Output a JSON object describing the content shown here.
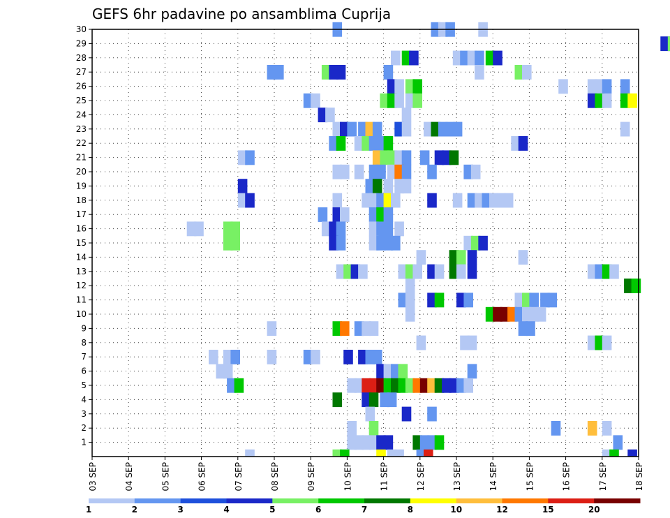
{
  "chart_data": {
    "type": "heatmap",
    "title": "GEFS 6hr padavine po ansamblima Cuprija",
    "xlabel": "",
    "ylabel": "",
    "x_ticks": [
      "03 SEP",
      "04 SEP",
      "05 SEP",
      "06 SEP",
      "07 SEP",
      "08 SEP",
      "09 SEP",
      "10 SEP",
      "11 SEP",
      "12 SEP",
      "13 SEP",
      "14 SEP",
      "15 SEP",
      "16 SEP",
      "17 SEP",
      "18 SEP"
    ],
    "y_ticks": [
      "1",
      "2",
      "3",
      "4",
      "5",
      "6",
      "7",
      "8",
      "9",
      "10",
      "11",
      "12",
      "13",
      "14",
      "15",
      "16",
      "17",
      "18",
      "19",
      "20",
      "21",
      "22",
      "23",
      "24",
      "25",
      "26",
      "27",
      "28",
      "29",
      "30"
    ],
    "x_range": [
      "03 SEP",
      "18 SEP"
    ],
    "y_range": [
      0,
      30
    ],
    "grid": true,
    "colorbar": {
      "labels": [
        "1",
        "2",
        "3",
        "4",
        "5",
        "6",
        "7",
        "8",
        "10",
        "12",
        "15",
        "20"
      ],
      "colors": [
        "#b4c8f4",
        "#6496f0",
        "#1e50dc",
        "#1a28c8",
        "#78f064",
        "#00c800",
        "#007800",
        "#ffff00",
        "#ffbe3c",
        "#ff7800",
        "#dc1e14",
        "#780000"
      ]
    },
    "cells": [
      {
        "m": 30,
        "d": 6.6,
        "c": 2
      },
      {
        "m": 30,
        "d": 9.3,
        "c": 2
      },
      {
        "m": 30,
        "d": 9.5,
        "c": 1
      },
      {
        "m": 30,
        "d": 9.7,
        "c": 2
      },
      {
        "m": 30,
        "d": 10.6,
        "c": 1
      },
      {
        "m": 29,
        "d": 15.6,
        "c": 4
      },
      {
        "m": 29,
        "d": 15.8,
        "c": 5
      },
      {
        "m": 28,
        "d": 8.2,
        "c": 1
      },
      {
        "m": 28,
        "d": 8.5,
        "c": 6
      },
      {
        "m": 28,
        "d": 8.7,
        "c": 4
      },
      {
        "m": 28,
        "d": 9.9,
        "c": 1
      },
      {
        "m": 28,
        "d": 10.1,
        "c": 2
      },
      {
        "m": 28,
        "d": 10.3,
        "c": 1
      },
      {
        "m": 28,
        "d": 10.5,
        "c": 2
      },
      {
        "m": 28,
        "d": 10.8,
        "c": 6
      },
      {
        "m": 28,
        "d": 11,
        "c": 4
      },
      {
        "m": 27,
        "d": 4.8,
        "c": 2
      },
      {
        "m": 27,
        "d": 5,
        "c": 2
      },
      {
        "m": 27,
        "d": 6.3,
        "c": 5
      },
      {
        "m": 27,
        "d": 6.5,
        "c": 4
      },
      {
        "m": 27,
        "d": 6.7,
        "c": 4
      },
      {
        "m": 27,
        "d": 8,
        "c": 2
      },
      {
        "m": 27,
        "d": 10.5,
        "c": 1
      },
      {
        "m": 27,
        "d": 11.6,
        "c": 5
      },
      {
        "m": 27,
        "d": 11.8,
        "c": 1
      },
      {
        "m": 26,
        "d": 8.1,
        "c": 4
      },
      {
        "m": 26,
        "d": 8.3,
        "c": 1
      },
      {
        "m": 26,
        "d": 8.6,
        "c": 5
      },
      {
        "m": 26,
        "d": 8.8,
        "c": 6
      },
      {
        "m": 26,
        "d": 12.8,
        "c": 1
      },
      {
        "m": 26,
        "d": 13.6,
        "c": 1
      },
      {
        "m": 26,
        "d": 13.8,
        "c": 1
      },
      {
        "m": 26,
        "d": 14,
        "c": 2
      },
      {
        "m": 26,
        "d": 14.5,
        "c": 2
      },
      {
        "m": 25,
        "d": 5.8,
        "c": 2
      },
      {
        "m": 25,
        "d": 6,
        "c": 1
      },
      {
        "m": 25,
        "d": 7.9,
        "c": 5
      },
      {
        "m": 25,
        "d": 8.1,
        "c": 6
      },
      {
        "m": 25,
        "d": 8.3,
        "c": 1
      },
      {
        "m": 25,
        "d": 8.6,
        "c": 1
      },
      {
        "m": 25,
        "d": 8.8,
        "c": 5
      },
      {
        "m": 25,
        "d": 13.6,
        "c": 4
      },
      {
        "m": 25,
        "d": 13.8,
        "c": 6
      },
      {
        "m": 25,
        "d": 14,
        "c": 1
      },
      {
        "m": 25,
        "d": 14.5,
        "c": 6
      },
      {
        "m": 25,
        "d": 14.7,
        "c": 8
      },
      {
        "m": 24,
        "d": 6.2,
        "c": 4
      },
      {
        "m": 24,
        "d": 6.4,
        "c": 1
      },
      {
        "m": 24,
        "d": 8.5,
        "c": 1
      },
      {
        "m": 23,
        "d": 6.6,
        "c": 1
      },
      {
        "m": 23,
        "d": 6.8,
        "c": 4
      },
      {
        "m": 23,
        "d": 7,
        "c": 2
      },
      {
        "m": 23,
        "d": 7.3,
        "c": 2
      },
      {
        "m": 23,
        "d": 7.5,
        "c": 9
      },
      {
        "m": 23,
        "d": 7.7,
        "c": 2
      },
      {
        "m": 23,
        "d": 8.3,
        "c": 3
      },
      {
        "m": 23,
        "d": 8.5,
        "c": 1
      },
      {
        "m": 23,
        "d": 9.1,
        "c": 1
      },
      {
        "m": 23,
        "d": 9.3,
        "c": 7
      },
      {
        "m": 23,
        "d": 9.5,
        "c": 2
      },
      {
        "m": 23,
        "d": 9.7,
        "c": 2
      },
      {
        "m": 23,
        "d": 9.9,
        "c": 2
      },
      {
        "m": 23,
        "d": 14.5,
        "c": 1
      },
      {
        "m": 22,
        "d": 6.5,
        "c": 2
      },
      {
        "m": 22,
        "d": 6.7,
        "c": 6
      },
      {
        "m": 22,
        "d": 7.2,
        "c": 1
      },
      {
        "m": 22,
        "d": 7.4,
        "c": 5
      },
      {
        "m": 22,
        "d": 7.6,
        "c": 2
      },
      {
        "m": 22,
        "d": 7.8,
        "c": 2
      },
      {
        "m": 22,
        "d": 8,
        "c": 6
      },
      {
        "m": 22,
        "d": 11.5,
        "c": 1
      },
      {
        "m": 22,
        "d": 11.7,
        "c": 4
      },
      {
        "m": 21,
        "d": 4,
        "c": 1
      },
      {
        "m": 21,
        "d": 4.2,
        "c": 2
      },
      {
        "m": 21,
        "d": 7.7,
        "c": 9
      },
      {
        "m": 21,
        "d": 7.9,
        "c": 5
      },
      {
        "m": 21,
        "d": 8.1,
        "c": 5
      },
      {
        "m": 21,
        "d": 8.3,
        "c": 1
      },
      {
        "m": 21,
        "d": 8.5,
        "c": 2
      },
      {
        "m": 21,
        "d": 9,
        "c": 2
      },
      {
        "m": 21,
        "d": 9.4,
        "c": 4
      },
      {
        "m": 21,
        "d": 9.6,
        "c": 4
      },
      {
        "m": 21,
        "d": 9.8,
        "c": 7
      },
      {
        "m": 20,
        "d": 6.6,
        "c": 1
      },
      {
        "m": 20,
        "d": 6.8,
        "c": 1
      },
      {
        "m": 20,
        "d": 7.2,
        "c": 1
      },
      {
        "m": 20,
        "d": 7.6,
        "c": 2
      },
      {
        "m": 20,
        "d": 7.8,
        "c": 2
      },
      {
        "m": 20,
        "d": 8.1,
        "c": 1
      },
      {
        "m": 20,
        "d": 8.3,
        "c": 10
      },
      {
        "m": 20,
        "d": 8.5,
        "c": 2
      },
      {
        "m": 20,
        "d": 9.2,
        "c": 2
      },
      {
        "m": 20,
        "d": 10.2,
        "c": 2
      },
      {
        "m": 20,
        "d": 10.4,
        "c": 1
      },
      {
        "m": 19,
        "d": 4,
        "c": 4
      },
      {
        "m": 19,
        "d": 7.5,
        "c": 2
      },
      {
        "m": 19,
        "d": 7.7,
        "c": 7
      },
      {
        "m": 19,
        "d": 8,
        "c": 1
      },
      {
        "m": 19,
        "d": 8.3,
        "c": 1
      },
      {
        "m": 19,
        "d": 8.5,
        "c": 1
      },
      {
        "m": 18,
        "d": 4,
        "c": 1
      },
      {
        "m": 18,
        "d": 4.2,
        "c": 4
      },
      {
        "m": 18,
        "d": 6.6,
        "c": 1
      },
      {
        "m": 18,
        "d": 7.4,
        "c": 1
      },
      {
        "m": 18,
        "d": 7.6,
        "c": 1
      },
      {
        "m": 18,
        "d": 7.8,
        "c": 2
      },
      {
        "m": 18,
        "d": 8,
        "c": 8
      },
      {
        "m": 18,
        "d": 8.2,
        "c": 1
      },
      {
        "m": 18,
        "d": 9.2,
        "c": 4
      },
      {
        "m": 18,
        "d": 9.9,
        "c": 1
      },
      {
        "m": 18,
        "d": 10.3,
        "c": 2
      },
      {
        "m": 18,
        "d": 10.5,
        "c": 1
      },
      {
        "m": 18,
        "d": 10.7,
        "c": 2
      },
      {
        "m": 18,
        "d": 10.9,
        "c": 1
      },
      {
        "m": 18,
        "d": 11.1,
        "c": 1
      },
      {
        "m": 18,
        "d": 11.3,
        "c": 1
      },
      {
        "m": 17,
        "d": 6.2,
        "c": 2
      },
      {
        "m": 17,
        "d": 6.6,
        "c": 4
      },
      {
        "m": 17,
        "d": 6.8,
        "c": 1
      },
      {
        "m": 17,
        "d": 7.6,
        "c": 2
      },
      {
        "m": 17,
        "d": 7.8,
        "c": 6
      },
      {
        "m": 17,
        "d": 8,
        "c": 2
      },
      {
        "m": 16,
        "d": 2.6,
        "c": 1
      },
      {
        "m": 16,
        "d": 2.8,
        "c": 1
      },
      {
        "m": 16,
        "d": 3.6,
        "c": 5
      },
      {
        "m": 16,
        "d": 3.8,
        "c": 5
      },
      {
        "m": 16,
        "d": 6.3,
        "c": 1
      },
      {
        "m": 16,
        "d": 6.5,
        "c": 4
      },
      {
        "m": 16,
        "d": 6.7,
        "c": 2
      },
      {
        "m": 16,
        "d": 7.6,
        "c": 1
      },
      {
        "m": 16,
        "d": 7.8,
        "c": 2
      },
      {
        "m": 16,
        "d": 8,
        "c": 2
      },
      {
        "m": 16,
        "d": 8.3,
        "c": 1
      },
      {
        "m": 15,
        "d": 3.6,
        "c": 5
      },
      {
        "m": 15,
        "d": 3.8,
        "c": 5
      },
      {
        "m": 15,
        "d": 6.5,
        "c": 4
      },
      {
        "m": 15,
        "d": 6.7,
        "c": 2
      },
      {
        "m": 15,
        "d": 7.6,
        "c": 1
      },
      {
        "m": 15,
        "d": 7.8,
        "c": 2
      },
      {
        "m": 15,
        "d": 8,
        "c": 2
      },
      {
        "m": 15,
        "d": 8.2,
        "c": 2
      },
      {
        "m": 15,
        "d": 10.2,
        "c": 1
      },
      {
        "m": 15,
        "d": 10.4,
        "c": 5
      },
      {
        "m": 15,
        "d": 10.6,
        "c": 4
      },
      {
        "m": 14,
        "d": 8.9,
        "c": 1
      },
      {
        "m": 14,
        "d": 9.8,
        "c": 7
      },
      {
        "m": 14,
        "d": 10,
        "c": 5
      },
      {
        "m": 14,
        "d": 10.3,
        "c": 4
      },
      {
        "m": 14,
        "d": 11.7,
        "c": 1
      },
      {
        "m": 13,
        "d": 6.7,
        "c": 1
      },
      {
        "m": 13,
        "d": 6.9,
        "c": 5
      },
      {
        "m": 13,
        "d": 7.1,
        "c": 4
      },
      {
        "m": 13,
        "d": 7.3,
        "c": 1
      },
      {
        "m": 13,
        "d": 8.4,
        "c": 1
      },
      {
        "m": 13,
        "d": 8.6,
        "c": 5
      },
      {
        "m": 13,
        "d": 8.8,
        "c": 1
      },
      {
        "m": 13,
        "d": 9.2,
        "c": 4
      },
      {
        "m": 13,
        "d": 9.4,
        "c": 1
      },
      {
        "m": 13,
        "d": 9.8,
        "c": 7
      },
      {
        "m": 13,
        "d": 10,
        "c": 1
      },
      {
        "m": 13,
        "d": 10.3,
        "c": 4
      },
      {
        "m": 13,
        "d": 13.6,
        "c": 1
      },
      {
        "m": 13,
        "d": 13.8,
        "c": 2
      },
      {
        "m": 13,
        "d": 14,
        "c": 6
      },
      {
        "m": 13,
        "d": 14.2,
        "c": 1
      },
      {
        "m": 12,
        "d": 8.6,
        "c": 1
      },
      {
        "m": 12,
        "d": 14.6,
        "c": 7
      },
      {
        "m": 12,
        "d": 14.8,
        "c": 6
      },
      {
        "m": 11,
        "d": 8.4,
        "c": 2
      },
      {
        "m": 11,
        "d": 8.6,
        "c": 1
      },
      {
        "m": 11,
        "d": 9.2,
        "c": 4
      },
      {
        "m": 11,
        "d": 9.4,
        "c": 6
      },
      {
        "m": 11,
        "d": 10,
        "c": 4
      },
      {
        "m": 11,
        "d": 10.2,
        "c": 2
      },
      {
        "m": 11,
        "d": 11.6,
        "c": 1
      },
      {
        "m": 11,
        "d": 11.8,
        "c": 5
      },
      {
        "m": 11,
        "d": 12,
        "c": 2
      },
      {
        "m": 11,
        "d": 12.3,
        "c": 2
      },
      {
        "m": 11,
        "d": 12.5,
        "c": 2
      },
      {
        "m": 10,
        "d": 8.6,
        "c": 1
      },
      {
        "m": 10,
        "d": 10.8,
        "c": 6
      },
      {
        "m": 10,
        "d": 11,
        "c": 12
      },
      {
        "m": 10,
        "d": 11.2,
        "c": 12
      },
      {
        "m": 10,
        "d": 11.4,
        "c": 10
      },
      {
        "m": 10,
        "d": 11.6,
        "c": 2
      },
      {
        "m": 10,
        "d": 11.8,
        "c": 1
      },
      {
        "m": 10,
        "d": 12,
        "c": 1
      },
      {
        "m": 10,
        "d": 12.2,
        "c": 1
      },
      {
        "m": 9,
        "d": 4.8,
        "c": 1
      },
      {
        "m": 9,
        "d": 6.6,
        "c": 6
      },
      {
        "m": 9,
        "d": 6.8,
        "c": 10
      },
      {
        "m": 9,
        "d": 7.2,
        "c": 2
      },
      {
        "m": 9,
        "d": 7.4,
        "c": 1
      },
      {
        "m": 9,
        "d": 7.6,
        "c": 1
      },
      {
        "m": 9,
        "d": 11.7,
        "c": 2
      },
      {
        "m": 9,
        "d": 11.9,
        "c": 2
      },
      {
        "m": 8,
        "d": 8.9,
        "c": 1
      },
      {
        "m": 8,
        "d": 10.1,
        "c": 1
      },
      {
        "m": 8,
        "d": 10.3,
        "c": 1
      },
      {
        "m": 8,
        "d": 13.6,
        "c": 1
      },
      {
        "m": 8,
        "d": 13.8,
        "c": 6
      },
      {
        "m": 8,
        "d": 14,
        "c": 1
      },
      {
        "m": 7,
        "d": 3.2,
        "c": 1
      },
      {
        "m": 7,
        "d": 3.6,
        "c": 1
      },
      {
        "m": 7,
        "d": 3.8,
        "c": 2
      },
      {
        "m": 7,
        "d": 4.8,
        "c": 1
      },
      {
        "m": 7,
        "d": 5.8,
        "c": 2
      },
      {
        "m": 7,
        "d": 6,
        "c": 1
      },
      {
        "m": 7,
        "d": 6.9,
        "c": 4
      },
      {
        "m": 7,
        "d": 7.3,
        "c": 4
      },
      {
        "m": 7,
        "d": 7.5,
        "c": 2
      },
      {
        "m": 7,
        "d": 7.7,
        "c": 2
      },
      {
        "m": 6,
        "d": 3.4,
        "c": 1
      },
      {
        "m": 6,
        "d": 3.6,
        "c": 1
      },
      {
        "m": 6,
        "d": 7.8,
        "c": 4
      },
      {
        "m": 6,
        "d": 8,
        "c": 1
      },
      {
        "m": 6,
        "d": 8.2,
        "c": 2
      },
      {
        "m": 6,
        "d": 8.4,
        "c": 5
      },
      {
        "m": 6,
        "d": 10.3,
        "c": 2
      },
      {
        "m": 5,
        "d": 3.7,
        "c": 2
      },
      {
        "m": 5,
        "d": 3.9,
        "c": 6
      },
      {
        "m": 5,
        "d": 7,
        "c": 1
      },
      {
        "m": 5,
        "d": 7.2,
        "c": 1
      },
      {
        "m": 5,
        "d": 7.4,
        "c": 11
      },
      {
        "m": 5,
        "d": 7.6,
        "c": 11
      },
      {
        "m": 5,
        "d": 7.8,
        "c": 12
      },
      {
        "m": 5,
        "d": 8,
        "c": 6
      },
      {
        "m": 5,
        "d": 8.2,
        "c": 7
      },
      {
        "m": 5,
        "d": 8.4,
        "c": 6
      },
      {
        "m": 5,
        "d": 8.6,
        "c": 5
      },
      {
        "m": 5,
        "d": 8.8,
        "c": 10
      },
      {
        "m": 5,
        "d": 9,
        "c": 12
      },
      {
        "m": 5,
        "d": 9.2,
        "c": 9
      },
      {
        "m": 5,
        "d": 9.4,
        "c": 7
      },
      {
        "m": 5,
        "d": 9.6,
        "c": 4
      },
      {
        "m": 5,
        "d": 9.8,
        "c": 4
      },
      {
        "m": 5,
        "d": 10,
        "c": 2
      },
      {
        "m": 5,
        "d": 10.2,
        "c": 1
      },
      {
        "m": 4,
        "d": 6.6,
        "c": 7
      },
      {
        "m": 4,
        "d": 7.4,
        "c": 4
      },
      {
        "m": 4,
        "d": 7.6,
        "c": 7
      },
      {
        "m": 4,
        "d": 7.9,
        "c": 2
      },
      {
        "m": 4,
        "d": 8.1,
        "c": 2
      },
      {
        "m": 3,
        "d": 7.5,
        "c": 1
      },
      {
        "m": 3,
        "d": 8.5,
        "c": 4
      },
      {
        "m": 3,
        "d": 9.2,
        "c": 2
      },
      {
        "m": 2,
        "d": 7,
        "c": 1
      },
      {
        "m": 2,
        "d": 7.6,
        "c": 5
      },
      {
        "m": 2,
        "d": 12.6,
        "c": 2
      },
      {
        "m": 2,
        "d": 13.6,
        "c": 9
      },
      {
        "m": 2,
        "d": 14,
        "c": 1
      },
      {
        "m": 1,
        "d": 7,
        "c": 1
      },
      {
        "m": 1,
        "d": 7.2,
        "c": 1
      },
      {
        "m": 1,
        "d": 7.4,
        "c": 1
      },
      {
        "m": 1,
        "d": 7.6,
        "c": 1
      },
      {
        "m": 1,
        "d": 7.8,
        "c": 4
      },
      {
        "m": 1,
        "d": 8,
        "c": 4
      },
      {
        "m": 1,
        "d": 8.8,
        "c": 7
      },
      {
        "m": 1,
        "d": 9,
        "c": 2
      },
      {
        "m": 1,
        "d": 9.2,
        "c": 2
      },
      {
        "m": 1,
        "d": 9.4,
        "c": 6
      },
      {
        "m": 1,
        "d": 14.3,
        "c": 2
      },
      {
        "m": 0,
        "d": 4.2,
        "c": 1
      },
      {
        "m": 0,
        "d": 6.6,
        "c": 5
      },
      {
        "m": 0,
        "d": 6.8,
        "c": 6
      },
      {
        "m": 0,
        "d": 7.8,
        "c": 8
      },
      {
        "m": 0,
        "d": 8.1,
        "c": 1
      },
      {
        "m": 0,
        "d": 8.3,
        "c": 1
      },
      {
        "m": 0,
        "d": 8.9,
        "c": 2
      },
      {
        "m": 0,
        "d": 9.1,
        "c": 11
      },
      {
        "m": 0,
        "d": 14,
        "c": 1
      },
      {
        "m": 0,
        "d": 14.2,
        "c": 6
      },
      {
        "m": 0,
        "d": 14.7,
        "c": 4
      }
    ]
  }
}
